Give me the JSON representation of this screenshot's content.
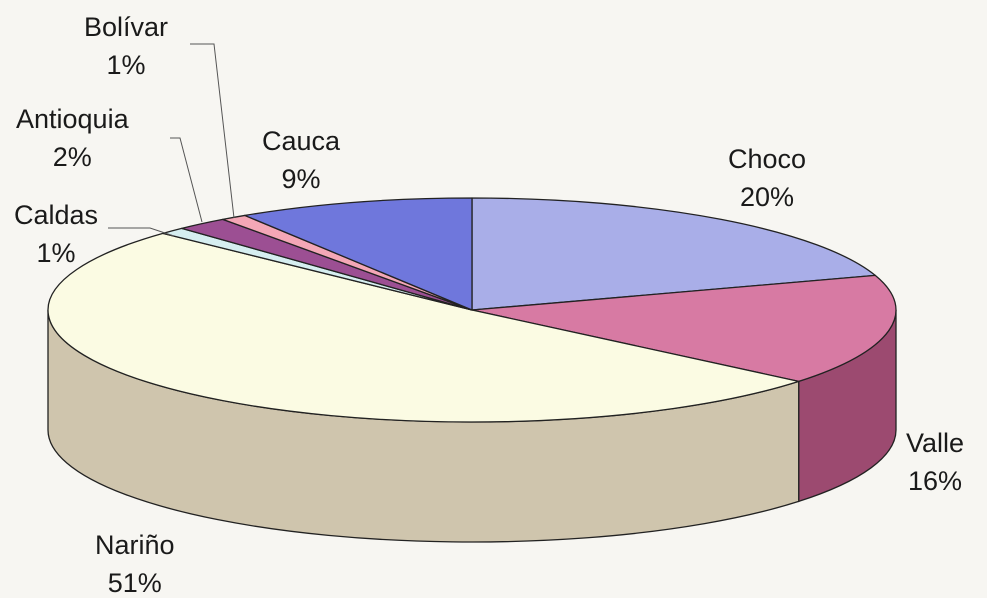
{
  "chart_data": {
    "type": "pie",
    "style": "3d",
    "title": "",
    "legend": "none",
    "slices": [
      {
        "label": "Choco",
        "value": 20,
        "value_label": "20%",
        "top_color": "#a9aee8",
        "side_color": "#6f73b0"
      },
      {
        "label": "Valle",
        "value": 16,
        "value_label": "16%",
        "top_color": "#d77aa3",
        "side_color": "#9c4a70"
      },
      {
        "label": "Nariño",
        "value": 51,
        "value_label": "51%",
        "top_color": "#fbfbe3",
        "side_color": "#cfc5ad"
      },
      {
        "label": "Caldas",
        "value": 1,
        "value_label": "1%",
        "top_color": "#d6eef0",
        "side_color": "#a9c4c6"
      },
      {
        "label": "Antioquia",
        "value": 2,
        "value_label": "2%",
        "top_color": "#9c4f93",
        "side_color": "#6e3067"
      },
      {
        "label": "Bolívar",
        "value": 1,
        "value_label": "1%",
        "top_color": "#f4a7b6",
        "side_color": "#c27a88"
      },
      {
        "label": "Cauca",
        "value": 9,
        "value_label": "9%",
        "top_color": "#6f77dc",
        "side_color": "#4c52a8"
      }
    ]
  }
}
